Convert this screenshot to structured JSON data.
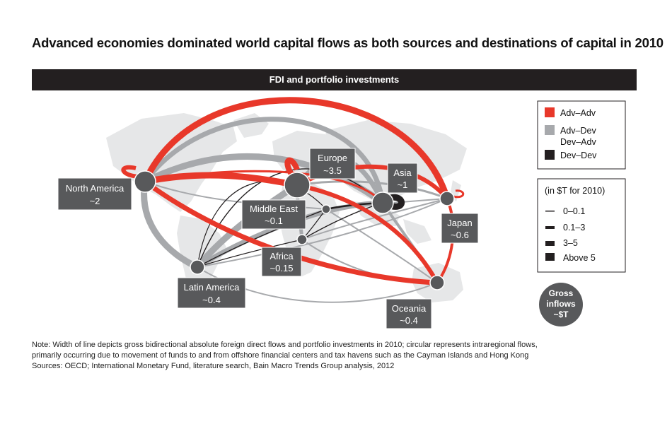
{
  "title": "Advanced economies dominated world capital flows as both sources and destinations of capital in 2010",
  "banner": "FDI and portfolio investments",
  "regions": [
    {
      "id": "north-america",
      "name": "North America",
      "value": "~2"
    },
    {
      "id": "europe",
      "name": "Europe",
      "value": "~3.5"
    },
    {
      "id": "asia",
      "name": "Asia",
      "value": "~1"
    },
    {
      "id": "middle-east",
      "name": "Middle East",
      "value": "~0.1"
    },
    {
      "id": "japan",
      "name": "Japan",
      "value": "~0.6"
    },
    {
      "id": "africa",
      "name": "Africa",
      "value": "~0.15"
    },
    {
      "id": "latin-america",
      "name": "Latin America",
      "value": "~0.4"
    },
    {
      "id": "oceania",
      "name": "Oceania",
      "value": "~0.4"
    }
  ],
  "legend": {
    "types": [
      {
        "label": "Adv–Adv",
        "color": "#e8382a"
      },
      {
        "label": "Adv–Dev",
        "color": "#a7a9ac"
      },
      {
        "label": "Dev–Adv",
        "color": "#a7a9ac"
      },
      {
        "label": "Dev–Dev",
        "color": "#231f20"
      }
    ],
    "width_title": "(in $T for 2010)",
    "widths": [
      "0–0.1",
      "0.1–3",
      "3–5",
      "Above 5"
    ],
    "gross_line1": "Gross",
    "gross_line2": "inflows",
    "gross_line3": "~$T"
  },
  "colors": {
    "adv_adv": "#e8382a",
    "adv_dev": "#a7a9ac",
    "dev_dev": "#231f20",
    "node": "#58595b",
    "map": "#e6e7e8"
  },
  "note": {
    "line1": "Note: Width of line depicts gross bidirectional absolute foreign direct flows and portfolio investments in 2010; circular represents intraregional flows,",
    "line2": "primarily occurring due to  movement of funds to and from offshore financial centers and tax havens such as the Cayman Islands and Hong Kong",
    "line3": "Sources: OECD; International Monetary Fund, literature search, Bain Macro Trends Group analysis, 2012"
  }
}
